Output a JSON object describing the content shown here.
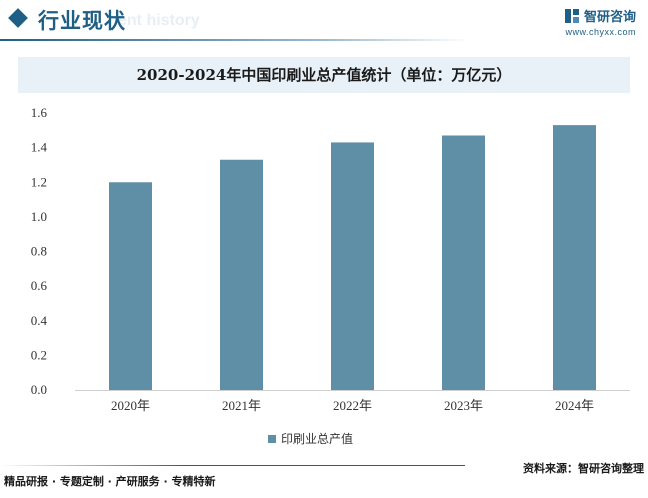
{
  "header": {
    "section_title": "行业现状",
    "section_subtitle": "ent history",
    "brand_name": "智研咨询",
    "brand_url": "www.chyxx.com"
  },
  "chart_data": {
    "type": "bar",
    "title": "2020-2024年中国印刷业总产值统计（单位：万亿元）",
    "categories": [
      "2020年",
      "2021年",
      "2022年",
      "2023年",
      "2024年"
    ],
    "series": [
      {
        "name": "印刷业总产值",
        "values": [
          1.2,
          1.33,
          1.43,
          1.47,
          1.53
        ]
      }
    ],
    "yticks": [
      "0.0",
      "0.2",
      "0.4",
      "0.6",
      "0.8",
      "1.0",
      "1.2",
      "1.4",
      "1.6"
    ],
    "ylim": [
      0,
      1.6
    ],
    "xlabel": "",
    "ylabel": "",
    "grid": false,
    "legend": "bottom",
    "bar_color": "#5f8fa6"
  },
  "footer": {
    "left": "精品研报 · 专题定制 · 产研服务 · 专精特新",
    "right": "资料来源：智研咨询整理"
  }
}
